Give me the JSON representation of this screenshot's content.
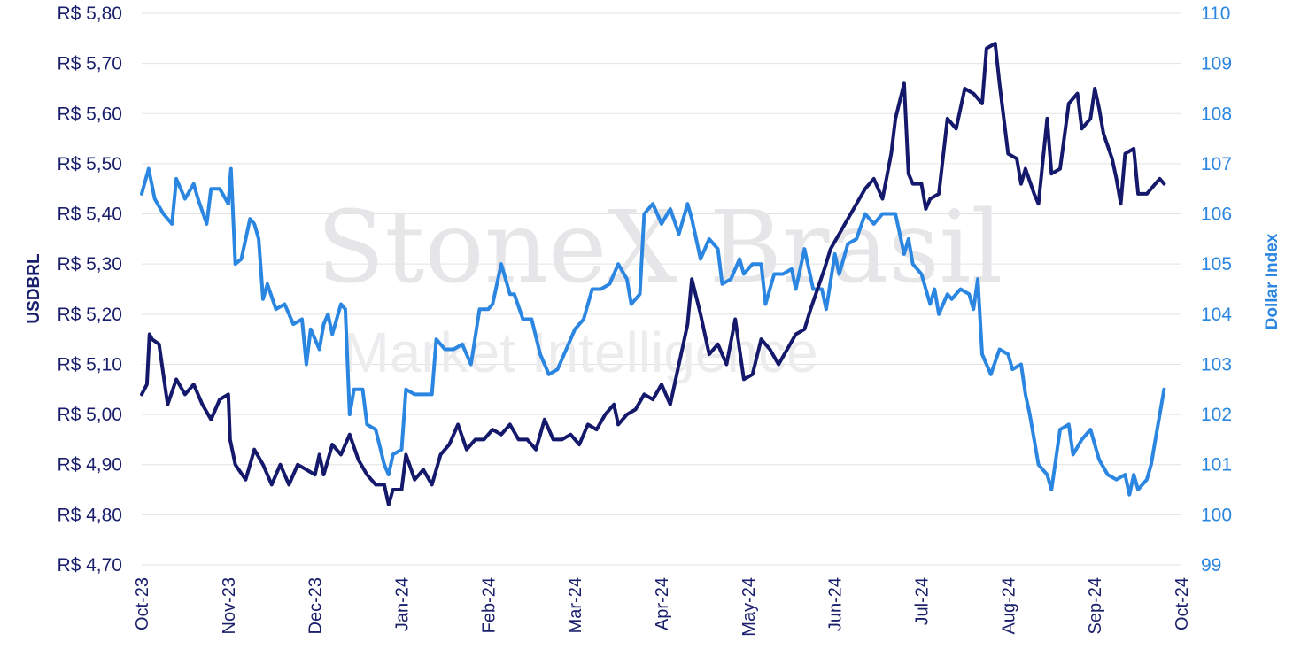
{
  "watermark": {
    "brand": "StoneX Brasil",
    "sub": "Market Intelligence"
  },
  "chart_data": {
    "type": "line",
    "x_labels": [
      "Oct-23",
      "Nov-23",
      "Dec-23",
      "Jan-24",
      "Feb-24",
      "Mar-24",
      "Apr-24",
      "May-24",
      "Jun-24",
      "Jul-24",
      "Aug-24",
      "Sep-24",
      "Oct-24"
    ],
    "y_left": {
      "label": "USDBRL",
      "range": [
        4.7,
        5.8
      ],
      "ticks": [
        "R$ 4,70",
        "R$ 4,80",
        "R$ 4,90",
        "R$ 5,00",
        "R$ 5,10",
        "R$ 5,20",
        "R$ 5,30",
        "R$ 5,40",
        "R$ 5,50",
        "R$ 5,60",
        "R$ 5,70",
        "R$ 5,80"
      ]
    },
    "y_right": {
      "label": "Dollar Index",
      "range": [
        99,
        110
      ],
      "ticks": [
        "99",
        "100",
        "101",
        "102",
        "103",
        "104",
        "105",
        "106",
        "107",
        "108",
        "109",
        "110"
      ]
    },
    "grid": true,
    "series": [
      {
        "name": "USDBRL",
        "axis": "left",
        "color": "#15196b",
        "points": [
          [
            0,
            5.04
          ],
          [
            0.06,
            5.06
          ],
          [
            0.09,
            5.16
          ],
          [
            0.12,
            5.15
          ],
          [
            0.2,
            5.14
          ],
          [
            0.3,
            5.02
          ],
          [
            0.4,
            5.07
          ],
          [
            0.5,
            5.04
          ],
          [
            0.6,
            5.06
          ],
          [
            0.7,
            5.02
          ],
          [
            0.8,
            4.99
          ],
          [
            0.9,
            5.03
          ],
          [
            1.0,
            5.04
          ],
          [
            1.02,
            4.95
          ],
          [
            1.08,
            4.9
          ],
          [
            1.2,
            4.87
          ],
          [
            1.3,
            4.93
          ],
          [
            1.4,
            4.9
          ],
          [
            1.5,
            4.86
          ],
          [
            1.6,
            4.9
          ],
          [
            1.7,
            4.86
          ],
          [
            1.8,
            4.9
          ],
          [
            1.9,
            4.89
          ],
          [
            2.0,
            4.88
          ],
          [
            2.05,
            4.92
          ],
          [
            2.1,
            4.88
          ],
          [
            2.2,
            4.94
          ],
          [
            2.3,
            4.92
          ],
          [
            2.4,
            4.96
          ],
          [
            2.5,
            4.91
          ],
          [
            2.6,
            4.88
          ],
          [
            2.7,
            4.86
          ],
          [
            2.8,
            4.86
          ],
          [
            2.85,
            4.82
          ],
          [
            2.9,
            4.85
          ],
          [
            3.0,
            4.85
          ],
          [
            3.05,
            4.92
          ],
          [
            3.15,
            4.87
          ],
          [
            3.25,
            4.89
          ],
          [
            3.35,
            4.86
          ],
          [
            3.45,
            4.92
          ],
          [
            3.55,
            4.94
          ],
          [
            3.65,
            4.98
          ],
          [
            3.75,
            4.93
          ],
          [
            3.85,
            4.95
          ],
          [
            3.95,
            4.95
          ],
          [
            4.05,
            4.97
          ],
          [
            4.15,
            4.96
          ],
          [
            4.25,
            4.98
          ],
          [
            4.35,
            4.95
          ],
          [
            4.45,
            4.95
          ],
          [
            4.55,
            4.93
          ],
          [
            4.65,
            4.99
          ],
          [
            4.75,
            4.95
          ],
          [
            4.85,
            4.95
          ],
          [
            4.95,
            4.96
          ],
          [
            5.05,
            4.94
          ],
          [
            5.15,
            4.98
          ],
          [
            5.25,
            4.97
          ],
          [
            5.35,
            5.0
          ],
          [
            5.45,
            5.02
          ],
          [
            5.5,
            4.98
          ],
          [
            5.6,
            5.0
          ],
          [
            5.7,
            5.01
          ],
          [
            5.8,
            5.04
          ],
          [
            5.9,
            5.03
          ],
          [
            6.0,
            5.06
          ],
          [
            6.1,
            5.02
          ],
          [
            6.2,
            5.1
          ],
          [
            6.3,
            5.18
          ],
          [
            6.35,
            5.27
          ],
          [
            6.45,
            5.2
          ],
          [
            6.55,
            5.12
          ],
          [
            6.65,
            5.14
          ],
          [
            6.75,
            5.1
          ],
          [
            6.85,
            5.19
          ],
          [
            6.95,
            5.07
          ],
          [
            7.05,
            5.08
          ],
          [
            7.15,
            5.15
          ],
          [
            7.25,
            5.13
          ],
          [
            7.35,
            5.1
          ],
          [
            7.45,
            5.13
          ],
          [
            7.55,
            5.16
          ],
          [
            7.65,
            5.17
          ],
          [
            7.72,
            5.21
          ],
          [
            7.8,
            5.25
          ],
          [
            7.88,
            5.29
          ],
          [
            7.95,
            5.33
          ],
          [
            8.05,
            5.36
          ],
          [
            8.15,
            5.39
          ],
          [
            8.25,
            5.42
          ],
          [
            8.35,
            5.45
          ],
          [
            8.45,
            5.47
          ],
          [
            8.55,
            5.43
          ],
          [
            8.65,
            5.52
          ],
          [
            8.7,
            5.59
          ],
          [
            8.8,
            5.66
          ],
          [
            8.85,
            5.48
          ],
          [
            8.9,
            5.46
          ],
          [
            9.0,
            5.46
          ],
          [
            9.05,
            5.41
          ],
          [
            9.1,
            5.43
          ],
          [
            9.2,
            5.44
          ],
          [
            9.3,
            5.59
          ],
          [
            9.4,
            5.57
          ],
          [
            9.5,
            5.65
          ],
          [
            9.6,
            5.64
          ],
          [
            9.7,
            5.62
          ],
          [
            9.75,
            5.73
          ],
          [
            9.85,
            5.74
          ],
          [
            9.9,
            5.66
          ],
          [
            10.0,
            5.52
          ],
          [
            10.1,
            5.51
          ],
          [
            10.15,
            5.46
          ],
          [
            10.2,
            5.49
          ],
          [
            10.3,
            5.44
          ],
          [
            10.35,
            5.42
          ],
          [
            10.45,
            5.59
          ],
          [
            10.5,
            5.48
          ],
          [
            10.6,
            5.49
          ],
          [
            10.7,
            5.62
          ],
          [
            10.8,
            5.64
          ],
          [
            10.85,
            5.57
          ],
          [
            10.95,
            5.59
          ],
          [
            11.0,
            5.65
          ],
          [
            11.05,
            5.61
          ],
          [
            11.1,
            5.56
          ],
          [
            11.2,
            5.51
          ],
          [
            11.25,
            5.47
          ],
          [
            11.3,
            5.42
          ],
          [
            11.35,
            5.52
          ],
          [
            11.45,
            5.53
          ],
          [
            11.5,
            5.44
          ],
          [
            11.6,
            5.44
          ],
          [
            11.7,
            5.46
          ],
          [
            11.75,
            5.47
          ],
          [
            11.8,
            5.46
          ]
        ]
      },
      {
        "name": "Dollar Index",
        "axis": "right",
        "color": "#2a86e0",
        "points": [
          [
            0,
            106.4
          ],
          [
            0.08,
            106.9
          ],
          [
            0.15,
            106.3
          ],
          [
            0.25,
            106.0
          ],
          [
            0.35,
            105.8
          ],
          [
            0.4,
            106.7
          ],
          [
            0.5,
            106.3
          ],
          [
            0.6,
            106.6
          ],
          [
            0.65,
            106.3
          ],
          [
            0.75,
            105.8
          ],
          [
            0.8,
            106.5
          ],
          [
            0.9,
            106.5
          ],
          [
            1.0,
            106.2
          ],
          [
            1.03,
            106.9
          ],
          [
            1.08,
            105.0
          ],
          [
            1.15,
            105.1
          ],
          [
            1.2,
            105.5
          ],
          [
            1.25,
            105.9
          ],
          [
            1.3,
            105.8
          ],
          [
            1.35,
            105.5
          ],
          [
            1.4,
            104.3
          ],
          [
            1.45,
            104.6
          ],
          [
            1.55,
            104.1
          ],
          [
            1.65,
            104.2
          ],
          [
            1.75,
            103.8
          ],
          [
            1.85,
            103.9
          ],
          [
            1.9,
            103.0
          ],
          [
            1.95,
            103.7
          ],
          [
            2.05,
            103.3
          ],
          [
            2.1,
            103.8
          ],
          [
            2.15,
            104.0
          ],
          [
            2.2,
            103.6
          ],
          [
            2.3,
            104.2
          ],
          [
            2.35,
            104.1
          ],
          [
            2.4,
            102.0
          ],
          [
            2.45,
            102.5
          ],
          [
            2.55,
            102.5
          ],
          [
            2.6,
            101.8
          ],
          [
            2.7,
            101.7
          ],
          [
            2.8,
            101.0
          ],
          [
            2.85,
            100.8
          ],
          [
            2.9,
            101.2
          ],
          [
            3.0,
            101.3
          ],
          [
            3.05,
            102.5
          ],
          [
            3.15,
            102.4
          ],
          [
            3.25,
            102.4
          ],
          [
            3.35,
            102.4
          ],
          [
            3.4,
            103.5
          ],
          [
            3.5,
            103.3
          ],
          [
            3.6,
            103.3
          ],
          [
            3.7,
            103.4
          ],
          [
            3.8,
            103.0
          ],
          [
            3.9,
            104.1
          ],
          [
            4.0,
            104.1
          ],
          [
            4.05,
            104.2
          ],
          [
            4.15,
            105.0
          ],
          [
            4.25,
            104.4
          ],
          [
            4.3,
            104.4
          ],
          [
            4.4,
            103.9
          ],
          [
            4.5,
            103.9
          ],
          [
            4.6,
            103.2
          ],
          [
            4.7,
            102.8
          ],
          [
            4.8,
            102.9
          ],
          [
            4.9,
            103.3
          ],
          [
            5.0,
            103.7
          ],
          [
            5.1,
            103.9
          ],
          [
            5.2,
            104.5
          ],
          [
            5.3,
            104.5
          ],
          [
            5.4,
            104.6
          ],
          [
            5.5,
            105.0
          ],
          [
            5.6,
            104.7
          ],
          [
            5.65,
            104.2
          ],
          [
            5.75,
            104.4
          ],
          [
            5.8,
            106.0
          ],
          [
            5.9,
            106.2
          ],
          [
            6.0,
            105.8
          ],
          [
            6.1,
            106.1
          ],
          [
            6.2,
            105.6
          ],
          [
            6.3,
            106.2
          ],
          [
            6.35,
            105.9
          ],
          [
            6.45,
            105.1
          ],
          [
            6.55,
            105.5
          ],
          [
            6.65,
            105.3
          ],
          [
            6.7,
            104.6
          ],
          [
            6.8,
            104.7
          ],
          [
            6.9,
            105.1
          ],
          [
            6.95,
            104.8
          ],
          [
            7.05,
            105.0
          ],
          [
            7.15,
            105.0
          ],
          [
            7.2,
            104.2
          ],
          [
            7.3,
            104.8
          ],
          [
            7.4,
            104.8
          ],
          [
            7.5,
            104.9
          ],
          [
            7.55,
            104.5
          ],
          [
            7.65,
            105.3
          ],
          [
            7.75,
            104.5
          ],
          [
            7.85,
            104.5
          ],
          [
            7.9,
            104.1
          ],
          [
            8.0,
            105.2
          ],
          [
            8.05,
            104.8
          ],
          [
            8.15,
            105.4
          ],
          [
            8.25,
            105.5
          ],
          [
            8.35,
            106.0
          ],
          [
            8.45,
            105.8
          ],
          [
            8.55,
            106.0
          ],
          [
            8.6,
            106.0
          ],
          [
            8.7,
            106.0
          ],
          [
            8.8,
            105.2
          ],
          [
            8.85,
            105.5
          ],
          [
            8.9,
            105.0
          ],
          [
            9.0,
            104.8
          ],
          [
            9.1,
            104.2
          ],
          [
            9.15,
            104.5
          ],
          [
            9.2,
            104.0
          ],
          [
            9.3,
            104.4
          ],
          [
            9.35,
            104.3
          ],
          [
            9.45,
            104.5
          ],
          [
            9.55,
            104.4
          ],
          [
            9.6,
            104.1
          ],
          [
            9.65,
            104.7
          ],
          [
            9.7,
            103.2
          ],
          [
            9.8,
            102.8
          ],
          [
            9.9,
            103.3
          ],
          [
            10.0,
            103.2
          ],
          [
            10.05,
            102.9
          ],
          [
            10.15,
            103.0
          ],
          [
            10.2,
            102.4
          ],
          [
            10.25,
            102.0
          ],
          [
            10.3,
            101.5
          ],
          [
            10.35,
            101.0
          ],
          [
            10.45,
            100.8
          ],
          [
            10.5,
            100.5
          ],
          [
            10.55,
            101.1
          ],
          [
            10.6,
            101.7
          ],
          [
            10.7,
            101.8
          ],
          [
            10.75,
            101.2
          ],
          [
            10.85,
            101.5
          ],
          [
            10.95,
            101.7
          ],
          [
            11.05,
            101.1
          ],
          [
            11.15,
            100.8
          ],
          [
            11.25,
            100.7
          ],
          [
            11.35,
            100.8
          ],
          [
            11.4,
            100.4
          ],
          [
            11.45,
            100.8
          ],
          [
            11.5,
            100.5
          ],
          [
            11.6,
            100.7
          ],
          [
            11.65,
            101.0
          ],
          [
            11.7,
            101.5
          ],
          [
            11.75,
            102.0
          ],
          [
            11.8,
            102.5
          ]
        ]
      }
    ]
  }
}
